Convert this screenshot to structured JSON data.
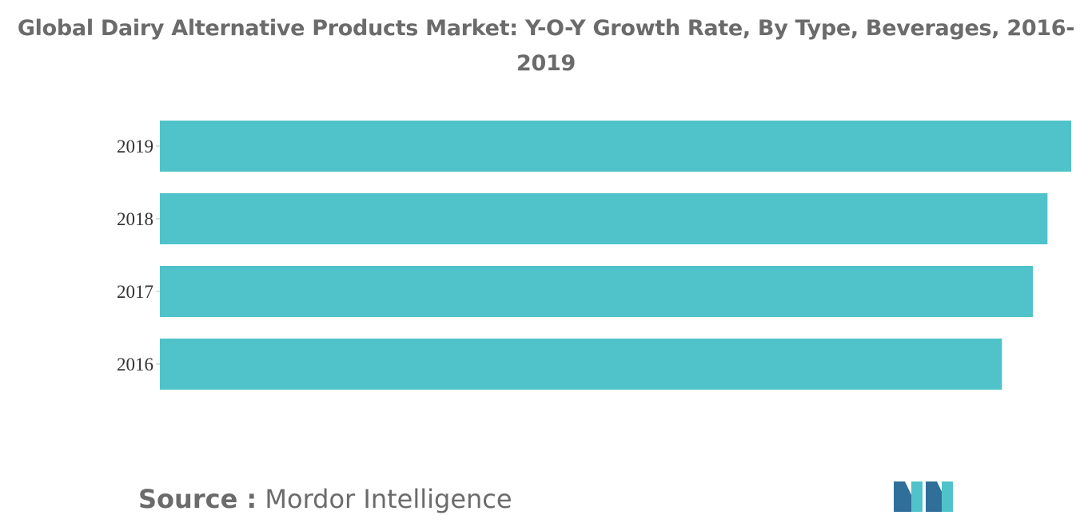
{
  "title": "Global Dairy Alternative Products Market: Y-O-Y Growth Rate, By Type, Beverages, 2016-2019",
  "source": {
    "label": "Source :",
    "text": "Mordor Intelligence"
  },
  "colors": {
    "bar": "#4fc3c9",
    "text": "#6b6b6b",
    "logo_dark": "#2f6f99",
    "logo_light": "#4fc3c9"
  },
  "logo": {
    "name": "mordor-intelligence-logo"
  },
  "chart_data": {
    "type": "bar",
    "orientation": "horizontal",
    "categories": [
      "2019",
      "2018",
      "2017",
      "2016"
    ],
    "values": [
      100,
      97.4,
      95.8,
      92.4
    ],
    "xlim": [
      0,
      100
    ],
    "grid": false,
    "legend": "none"
  }
}
